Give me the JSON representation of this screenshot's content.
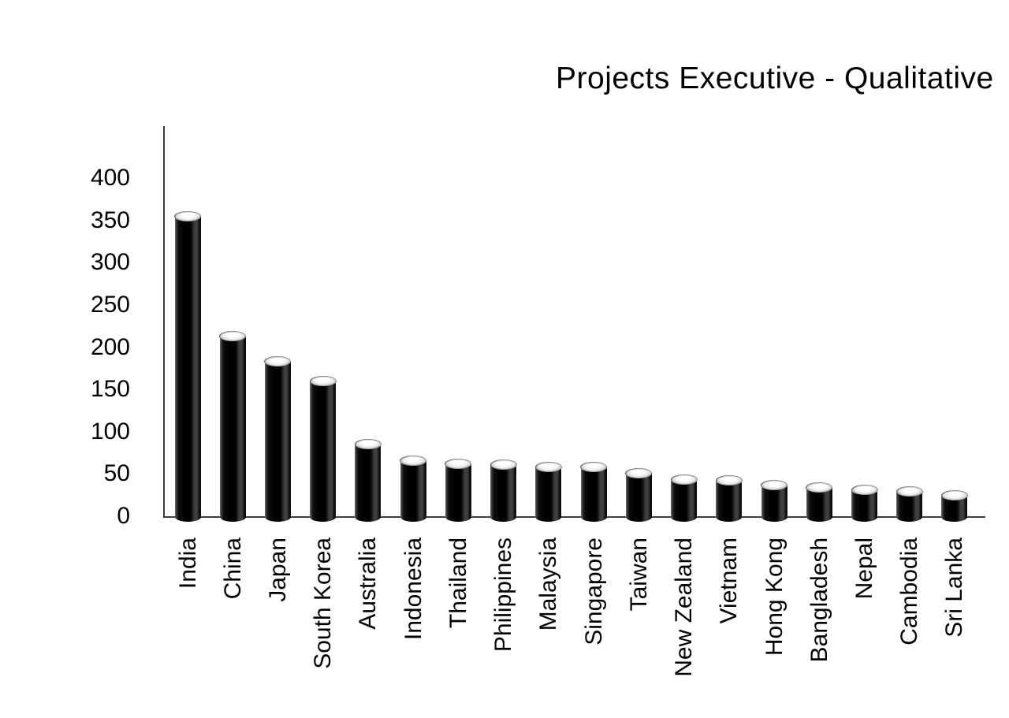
{
  "chart_data": {
    "type": "bar",
    "title": "Projects Executive - Qualitative",
    "categories": [
      "India",
      "China",
      "Japan",
      "South Korea",
      "Australia",
      "Indonesia",
      "Thailand",
      "Philippines",
      "Malaysia",
      "Singapore",
      "Taiwan",
      "New Zealand",
      "Vietnam",
      "Hong Kong",
      "Bangladesh",
      "Nepal",
      "Cambodia",
      "Sri Lanka"
    ],
    "values": [
      355,
      213,
      183,
      160,
      85,
      66,
      62,
      61,
      58,
      58,
      51,
      43,
      42,
      37,
      34,
      31,
      29,
      25
    ],
    "yticks": [
      400,
      350,
      300,
      250,
      200,
      150,
      100,
      50,
      0
    ],
    "ylim": [
      0,
      400
    ],
    "xlabel": "",
    "ylabel": "",
    "grid": false,
    "legend": "none",
    "bar_style": "3d-cylinder",
    "bar_color": "#0a0a0a",
    "bar_top_color": "#f2f2f2",
    "axis_color": "#3d3d3d",
    "text_color": "#000000",
    "background_color": "#ffffff"
  }
}
